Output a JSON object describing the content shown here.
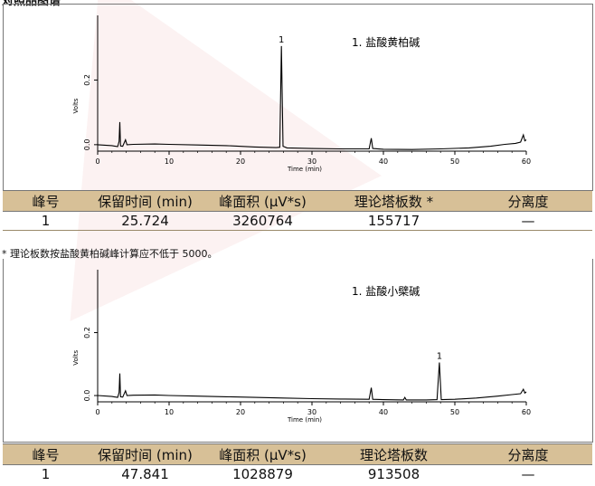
{
  "page": {
    "header": "对照品图谱",
    "note": "* 理论板数按盐酸黄柏碱峰计算应不低于 5000。"
  },
  "chart_data": [
    {
      "type": "line",
      "title": "",
      "xlabel": "Time (min)",
      "ylabel": "Volts",
      "xlim": [
        0,
        60
      ],
      "ylim": [
        -0.02,
        0.4
      ],
      "x_ticks": [
        "0",
        "10",
        "20",
        "30",
        "40",
        "50",
        "60"
      ],
      "y_ticks": [
        "0.0",
        "0.2"
      ],
      "legend_text": "1.  盐酸黄柏碱",
      "peak_labels": [
        {
          "label": "1",
          "x": 25.72
        }
      ],
      "series": [
        {
          "points": [
            [
              0,
              0.0
            ],
            [
              2.0,
              -0.003
            ],
            [
              2.8,
              -0.006
            ],
            [
              3.0,
              0.01
            ],
            [
              3.1,
              0.07
            ],
            [
              3.2,
              -0.004
            ],
            [
              3.5,
              -0.005
            ],
            [
              3.9,
              0.015
            ],
            [
              4.1,
              0.0
            ],
            [
              5,
              0.001
            ],
            [
              8,
              0.002
            ],
            [
              10,
              0.001
            ],
            [
              14,
              -0.001
            ],
            [
              18,
              -0.003
            ],
            [
              22,
              -0.007
            ],
            [
              25.0,
              -0.009
            ],
            [
              25.5,
              -0.008
            ],
            [
              25.72,
              0.305
            ],
            [
              25.95,
              -0.005
            ],
            [
              26.5,
              -0.01
            ],
            [
              30,
              -0.012
            ],
            [
              34,
              -0.013
            ],
            [
              37,
              -0.013
            ],
            [
              38.0,
              -0.013
            ],
            [
              38.3,
              0.02
            ],
            [
              38.5,
              -0.012
            ],
            [
              40,
              -0.014
            ],
            [
              44,
              -0.015
            ],
            [
              48,
              -0.013
            ],
            [
              52,
              -0.01
            ],
            [
              55,
              -0.005
            ],
            [
              57,
              0.001
            ],
            [
              58.5,
              0.004
            ],
            [
              59.2,
              0.008
            ],
            [
              59.6,
              0.03
            ],
            [
              59.8,
              0.012
            ],
            [
              60,
              0.015
            ]
          ]
        }
      ]
    },
    {
      "type": "line",
      "title": "",
      "xlabel": "Time (min)",
      "ylabel": "Volts",
      "xlim": [
        0,
        60
      ],
      "ylim": [
        -0.02,
        0.4
      ],
      "x_ticks": [
        "0",
        "10",
        "20",
        "30",
        "40",
        "50",
        "60"
      ],
      "y_ticks": [
        "0.0",
        "0.2"
      ],
      "legend_text": "1.  盐酸小檗碱",
      "peak_labels": [
        {
          "label": "1",
          "x": 47.84
        }
      ],
      "series": [
        {
          "points": [
            [
              0,
              0.0
            ],
            [
              2.0,
              -0.003
            ],
            [
              2.8,
              -0.006
            ],
            [
              3.0,
              0.01
            ],
            [
              3.1,
              0.07
            ],
            [
              3.2,
              -0.004
            ],
            [
              3.5,
              -0.005
            ],
            [
              3.9,
              0.015
            ],
            [
              4.1,
              0.0
            ],
            [
              5,
              0.001
            ],
            [
              8,
              0.002
            ],
            [
              10,
              0.0
            ],
            [
              14,
              -0.002
            ],
            [
              18,
              -0.004
            ],
            [
              22,
              -0.006
            ],
            [
              26,
              -0.008
            ],
            [
              30,
              -0.01
            ],
            [
              34,
              -0.011
            ],
            [
              38.0,
              -0.012
            ],
            [
              38.3,
              0.025
            ],
            [
              38.5,
              -0.012
            ],
            [
              40,
              -0.013
            ],
            [
              42.8,
              -0.014
            ],
            [
              43.0,
              -0.006
            ],
            [
              43.2,
              -0.014
            ],
            [
              46,
              -0.014
            ],
            [
              47.5,
              -0.013
            ],
            [
              47.84,
              0.105
            ],
            [
              48.1,
              -0.013
            ],
            [
              50,
              -0.012
            ],
            [
              53,
              -0.008
            ],
            [
              56,
              -0.002
            ],
            [
              58,
              0.003
            ],
            [
              59.2,
              0.006
            ],
            [
              59.6,
              0.02
            ],
            [
              59.8,
              0.008
            ],
            [
              60,
              0.012
            ]
          ]
        }
      ]
    }
  ],
  "tables": [
    {
      "headers": [
        "峰号",
        "保留时间 (min)",
        "峰面积 (μV*s)",
        "理论塔板数 *",
        "分离度"
      ],
      "rows": [
        [
          "1",
          "25.724",
          "3260764",
          "155717",
          "—"
        ]
      ]
    },
    {
      "headers": [
        "峰号",
        "保留时间 (min)",
        "峰面积 (μV*s)",
        "理论塔板数",
        "分离度"
      ],
      "rows": [
        [
          "1",
          "47.841",
          "1028879",
          "913508",
          "—"
        ]
      ]
    }
  ]
}
